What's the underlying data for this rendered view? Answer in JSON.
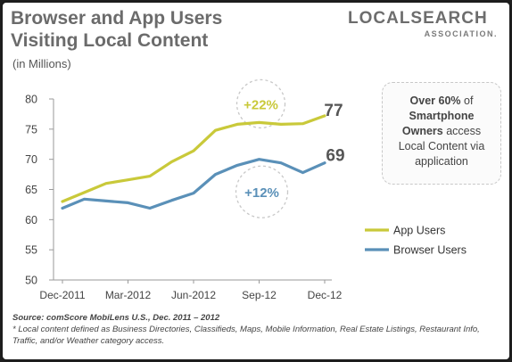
{
  "header": {
    "title_line1": "Browser and App Users",
    "title_line2": "Visiting Local Content",
    "subtitle": "(in Millions)"
  },
  "logo": {
    "main": "LOCALSEARCH",
    "sub": "ASSOCIATION."
  },
  "callout": {
    "part1": "Over 60%",
    "part2": " of ",
    "part3": "Smartphone Owners",
    "part4": " access Local Content via application"
  },
  "annotations": {
    "app_growth": "+22%",
    "browser_growth": "+12%",
    "app_end": "77",
    "browser_end": "69"
  },
  "footer": {
    "source": "Source: comScore MobiLens U.S., Dec. 2011 – 2012",
    "note": "* Local content defined as Business Directories, Classifieds, Maps, Mobile Information, Real Estate Listings, Restaurant Info, Traffic, and/or Weather category access."
  },
  "chart_data": {
    "type": "line",
    "title": "Browser and App Users Visiting Local Content",
    "ylabel": "(in Millions)",
    "xlabel": "",
    "ylim": [
      50,
      80
    ],
    "yticks": [
      50,
      55,
      60,
      65,
      70,
      75,
      80
    ],
    "x": [
      "Dec-2011",
      "Jan-2012",
      "Feb-2012",
      "Mar-2012",
      "Apr-2012",
      "May-2012",
      "Jun-2012",
      "Jul-2012",
      "Aug-2012",
      "Sep-12",
      "Oct-2012",
      "Nov-2012",
      "Dec-12"
    ],
    "xtick_labels": [
      "Dec-2011",
      "Mar-2012",
      "Jun-2012",
      "Sep-12",
      "Dec-12"
    ],
    "xtick_indices": [
      0,
      3,
      6,
      9,
      12
    ],
    "series": [
      {
        "name": "App Users",
        "color": "#c9c93a",
        "values": [
          63.0,
          64.5,
          66.0,
          66.6,
          67.2,
          69.6,
          71.4,
          74.8,
          75.8,
          76.1,
          75.8,
          75.9,
          77.2
        ]
      },
      {
        "name": "Browser Users",
        "color": "#5a90b8",
        "values": [
          61.9,
          63.4,
          63.1,
          62.8,
          61.9,
          63.2,
          64.4,
          67.5,
          69.0,
          70.0,
          69.4,
          67.8,
          69.4
        ]
      }
    ],
    "grid": false,
    "legend_position": "right"
  }
}
